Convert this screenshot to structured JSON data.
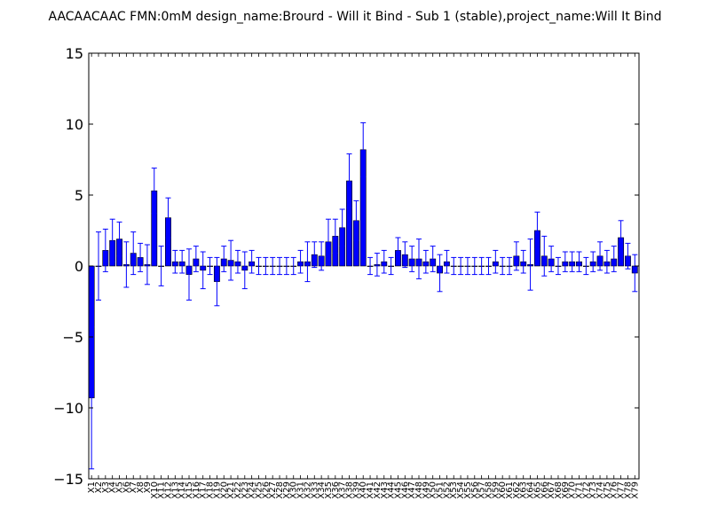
{
  "chart_data": {
    "type": "bar",
    "title": "AACAACAAC  FMN:0mM  design_name:Brourd - Will it Bind - Sub 1 (stable),project_name:Will It Bind",
    "xlabel": "",
    "ylabel": "",
    "ylim": [
      -15,
      15
    ],
    "yticks": [
      -15,
      -10,
      -5,
      0,
      5,
      10,
      15
    ],
    "ytick_labels": [
      "−15",
      "−10",
      "−5",
      "0",
      "5",
      "10",
      "15"
    ],
    "grid": false,
    "bar_color": "#0000ff",
    "error_color": "#0000ff",
    "categories": [
      "X1",
      "X2",
      "X3",
      "X4",
      "X5",
      "X6",
      "X7",
      "X8",
      "X9",
      "X10",
      "X11",
      "X12",
      "X13",
      "X14",
      "X15",
      "X16",
      "X17",
      "X18",
      "X19",
      "X20",
      "X21",
      "X22",
      "X23",
      "X24",
      "X25",
      "X26",
      "X27",
      "X28",
      "X29",
      "X30",
      "X31",
      "X32",
      "X33",
      "X34",
      "X35",
      "X36",
      "X37",
      "X38",
      "X39",
      "X40",
      "X41",
      "X42",
      "X43",
      "X44",
      "X45",
      "X46",
      "X47",
      "X48",
      "X49",
      "X50",
      "X51",
      "X52",
      "X53",
      "X54",
      "X55",
      "X56",
      "X57",
      "X58",
      "X59",
      "X60",
      "X61",
      "X62",
      "X63",
      "X64",
      "X65",
      "X66",
      "X67",
      "X68",
      "X69",
      "X70",
      "X71",
      "X72",
      "X73",
      "X74",
      "X75",
      "X76",
      "X77",
      "X78",
      "X79"
    ],
    "values": [
      -9.3,
      0,
      1.1,
      1.8,
      1.9,
      0.1,
      0.9,
      0.6,
      0.1,
      5.3,
      0,
      3.4,
      0.3,
      0.3,
      -0.6,
      0.5,
      -0.3,
      0,
      -1.1,
      0.5,
      0.4,
      0.3,
      -0.3,
      0.3,
      0,
      0,
      0,
      0,
      0,
      0,
      0.3,
      0.3,
      0.8,
      0.7,
      1.7,
      2.1,
      2.7,
      6,
      3.2,
      8.2,
      0,
      0.1,
      0.3,
      0,
      1.1,
      0.8,
      0.5,
      0.5,
      0.3,
      0.5,
      -0.5,
      0.3,
      0,
      0,
      0,
      0,
      0,
      0,
      0.3,
      0,
      0,
      0.7,
      0.3,
      0.1,
      2.5,
      0.7,
      0.5,
      0,
      0.3,
      0.3,
      0.3,
      0,
      0.3,
      0.7,
      0.3,
      0.5,
      2,
      0.7,
      -0.5
    ],
    "errors": [
      5,
      2.4,
      1.5,
      1.5,
      1.2,
      1.6,
      1.5,
      1,
      1.4,
      1.6,
      1.4,
      1.4,
      0.8,
      0.8,
      1.8,
      0.9,
      1.3,
      0.6,
      1.7,
      0.9,
      1.4,
      0.8,
      1.3,
      0.8,
      0.6,
      0.6,
      0.6,
      0.6,
      0.6,
      0.6,
      0.8,
      1.4,
      0.9,
      1,
      1.6,
      1.2,
      1.3,
      1.9,
      1.4,
      1.9,
      0.6,
      0.8,
      0.8,
      0.6,
      0.9,
      0.9,
      0.9,
      1.4,
      0.8,
      0.9,
      1.3,
      0.8,
      0.6,
      0.6,
      0.6,
      0.6,
      0.6,
      0.6,
      0.8,
      0.6,
      0.6,
      1,
      0.8,
      1.8,
      1.3,
      1.4,
      0.9,
      0.6,
      0.7,
      0.7,
      0.7,
      0.6,
      0.7,
      1,
      0.8,
      0.9,
      1.2,
      0.9,
      1.3
    ]
  }
}
